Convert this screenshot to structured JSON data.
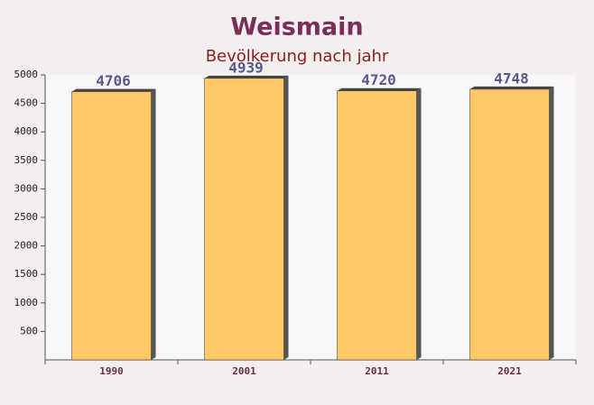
{
  "chart_data": {
    "type": "bar",
    "title": "Weismain",
    "subtitle": "Bevölkerung nach jahr",
    "categories": [
      "1990",
      "2001",
      "2011",
      "2021"
    ],
    "values": [
      4706,
      4939,
      4720,
      4748
    ],
    "color": "#fec867",
    "ylim": [
      0,
      5000
    ],
    "yticks": [
      500,
      1000,
      1500,
      2000,
      2500,
      3000,
      3500,
      4000,
      4500,
      5000
    ]
  }
}
